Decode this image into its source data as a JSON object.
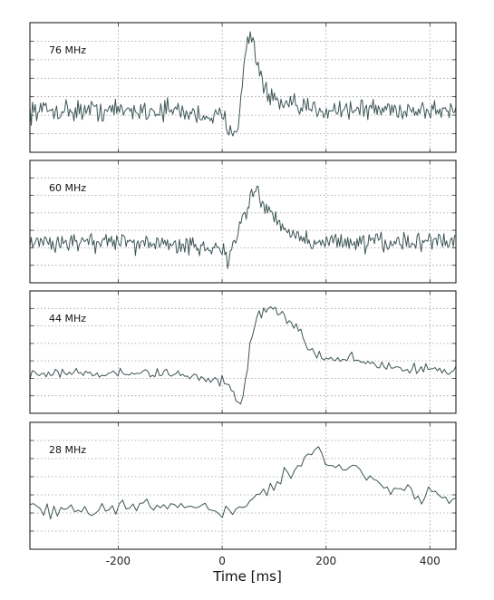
{
  "chart_data": {
    "type": "line",
    "xlabel": "Time [ms]",
    "xlim": [
      -370,
      450
    ],
    "xticks": [
      -200,
      0,
      200,
      400
    ],
    "grid": true,
    "line_color": "#3d5555",
    "panels": [
      {
        "label": "76 MHz",
        "ylim": [
          -1.1,
          2.3
        ],
        "n_points": 320,
        "noise": 0.2,
        "series": {
          "name": "76 MHz",
          "x": [
            -370,
            -100,
            0,
            15,
            28,
            40,
            48,
            55,
            62,
            70,
            80,
            90,
            110,
            150,
            450
          ],
          "y": [
            0.0,
            0.0,
            -0.2,
            -0.45,
            -0.5,
            0.8,
            1.7,
            2.0,
            1.7,
            1.1,
            0.65,
            0.35,
            0.15,
            0.05,
            0.0
          ]
        }
      },
      {
        "label": "60 MHz",
        "ylim": [
          -1.1,
          2.3
        ],
        "n_points": 320,
        "noise": 0.2,
        "series": {
          "name": "60 MHz",
          "x": [
            -370,
            -100,
            0,
            10,
            20,
            35,
            50,
            65,
            80,
            100,
            130,
            170,
            450
          ],
          "y": [
            0.0,
            0.0,
            -0.15,
            -0.5,
            -0.1,
            0.5,
            1.1,
            1.5,
            1.0,
            0.6,
            0.3,
            0.05,
            0.0
          ]
        }
      },
      {
        "label": "44 MHz",
        "ylim": [
          -1.1,
          2.3
        ],
        "n_points": 185,
        "noise": 0.11,
        "series": {
          "name": "44 MHz",
          "x": [
            -370,
            -100,
            0,
            20,
            35,
            45,
            55,
            70,
            90,
            110,
            140,
            160,
            175,
            250,
            350,
            450
          ],
          "y": [
            0.0,
            0.0,
            -0.15,
            -0.55,
            -0.9,
            -0.3,
            1.0,
            1.7,
            1.75,
            1.8,
            1.3,
            0.9,
            0.5,
            0.4,
            0.15,
            0.05
          ]
        }
      },
      {
        "label": "28 MHz",
        "ylim": [
          -1.1,
          2.3
        ],
        "n_points": 125,
        "noise": 0.17,
        "series": {
          "name": "28 MHz",
          "x": [
            -370,
            -100,
            0,
            20,
            40,
            60,
            90,
            130,
            160,
            185,
            200,
            260,
            320,
            380,
            450
          ],
          "y": [
            0.0,
            0.0,
            0.0,
            -0.2,
            0.0,
            0.3,
            0.6,
            0.95,
            1.3,
            1.6,
            1.2,
            1.05,
            0.55,
            0.35,
            0.25
          ]
        }
      }
    ]
  }
}
